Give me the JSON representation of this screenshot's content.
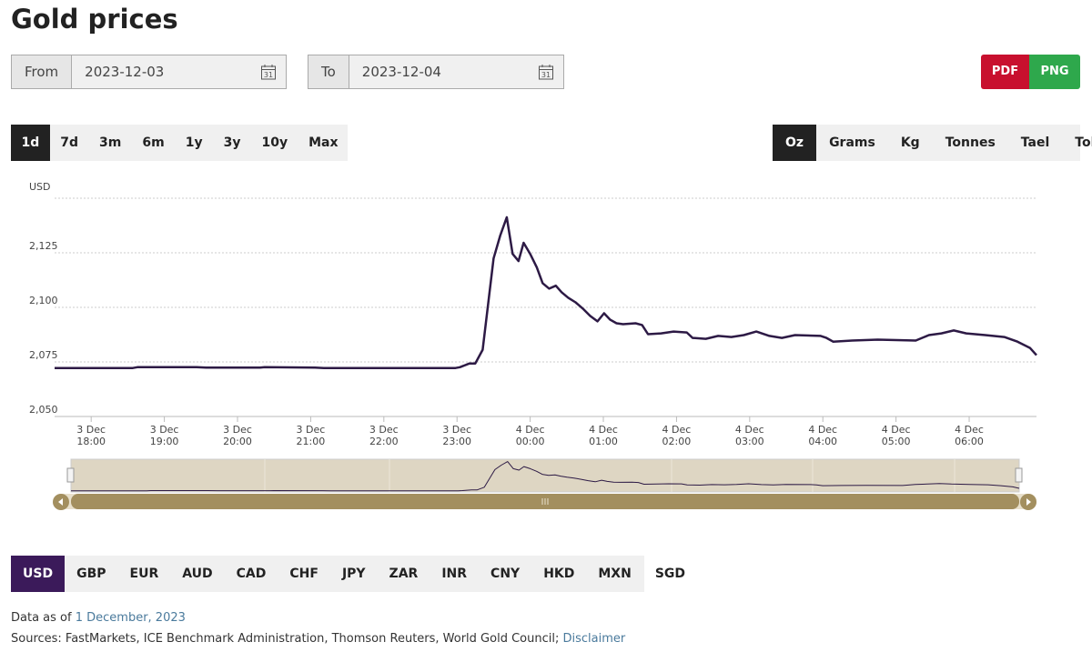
{
  "title": "Gold prices",
  "from": {
    "label": "From",
    "value": "2023-12-03"
  },
  "to": {
    "label": "To",
    "value": "2023-12-04"
  },
  "calendar_icon": "31",
  "export": [
    "PDF",
    "PNG"
  ],
  "ranges": [
    "1d",
    "7d",
    "3m",
    "6m",
    "1y",
    "3y",
    "10y",
    "Max"
  ],
  "active_range": "1d",
  "units": [
    "Oz",
    "Grams",
    "Kg",
    "Tonnes",
    "Tael",
    "Tola"
  ],
  "active_unit": "Oz",
  "currencies": [
    "USD",
    "GBP",
    "EUR",
    "AUD",
    "CAD",
    "CHF",
    "JPY",
    "ZAR",
    "INR",
    "CNY",
    "HKD",
    "MXN",
    "SGD"
  ],
  "active_currency": "USD",
  "chart_data": {
    "type": "line",
    "y_label": "USD",
    "x": [
      17.5,
      18.57,
      18.63,
      19.44,
      19.57,
      20.31,
      20.37,
      21.06,
      21.18,
      22.98,
      23.04,
      23.17,
      23.25,
      23.35,
      23.5,
      23.59,
      23.68,
      23.76,
      23.84,
      23.91,
      24.0,
      24.09,
      24.17,
      24.26,
      24.35,
      24.43,
      24.52,
      24.62,
      24.72,
      24.82,
      24.92,
      25.01,
      25.09,
      25.18,
      25.27,
      25.44,
      25.53,
      25.61,
      25.79,
      25.96,
      26.14,
      26.22,
      26.4,
      26.57,
      26.75,
      26.92,
      27.09,
      27.27,
      27.44,
      27.62,
      27.97,
      28.05,
      28.14,
      28.4,
      28.75,
      29.27,
      29.45,
      29.62,
      29.79,
      29.96,
      30.22,
      30.48,
      30.66,
      30.83,
      30.92
    ],
    "series": [
      {
        "name": "Gold price",
        "color": "#2d1a45",
        "values": [
          2072.2,
          2072.2,
          2072.6,
          2072.6,
          2072.4,
          2072.4,
          2072.6,
          2072.4,
          2072.2,
          2072.2,
          2072.6,
          2074.3,
          2074.3,
          2080.6,
          2122.4,
          2132.9,
          2141.3,
          2124.5,
          2121.2,
          2129.6,
          2124.5,
          2118.3,
          2111.1,
          2108.6,
          2109.9,
          2106.9,
          2104.4,
          2102.3,
          2099.4,
          2096.1,
          2093.6,
          2097.3,
          2094.4,
          2092.7,
          2092.3,
          2092.7,
          2091.9,
          2087.7,
          2088.1,
          2088.9,
          2088.5,
          2086.0,
          2085.6,
          2086.9,
          2086.4,
          2087.3,
          2088.9,
          2086.9,
          2086.0,
          2087.3,
          2086.9,
          2086.0,
          2084.3,
          2084.8,
          2085.2,
          2084.8,
          2087.3,
          2088.1,
          2089.4,
          2088.1,
          2087.3,
          2086.4,
          2084.3,
          2081.4,
          2078.1
        ]
      }
    ],
    "xlim": [
      17.5,
      30.92
    ],
    "xticks": [
      {
        "value": 18,
        "label": "3 Dec 18:00"
      },
      {
        "value": 19,
        "label": "3 Dec 19:00"
      },
      {
        "value": 20,
        "label": "3 Dec 20:00"
      },
      {
        "value": 21,
        "label": "3 Dec 21:00"
      },
      {
        "value": 22,
        "label": "3 Dec 22:00"
      },
      {
        "value": 23,
        "label": "3 Dec 23:00"
      },
      {
        "value": 24,
        "label": "4 Dec 00:00"
      },
      {
        "value": 25,
        "label": "4 Dec 01:00"
      },
      {
        "value": 26,
        "label": "4 Dec 02:00"
      },
      {
        "value": 27,
        "label": "4 Dec 03:00"
      },
      {
        "value": 28,
        "label": "4 Dec 04:00"
      },
      {
        "value": 29,
        "label": "4 Dec 05:00"
      },
      {
        "value": 30,
        "label": "4 Dec 06:00"
      }
    ],
    "ylim": [
      2050,
      2150
    ],
    "yticks": [
      {
        "value": 2050,
        "label": "2,050"
      },
      {
        "value": 2075,
        "label": "2,075"
      },
      {
        "value": 2100,
        "label": "2,100"
      },
      {
        "value": 2125,
        "label": "2,125"
      }
    ],
    "grid": true
  },
  "footer": {
    "as_of_label": "Data as of",
    "as_of_date": "1 December, 2023",
    "sources": "Sources: FastMarkets, ICE Benchmark Administration, Thomson Reuters, World Gold Council;",
    "disclaimer": "Disclaimer"
  }
}
